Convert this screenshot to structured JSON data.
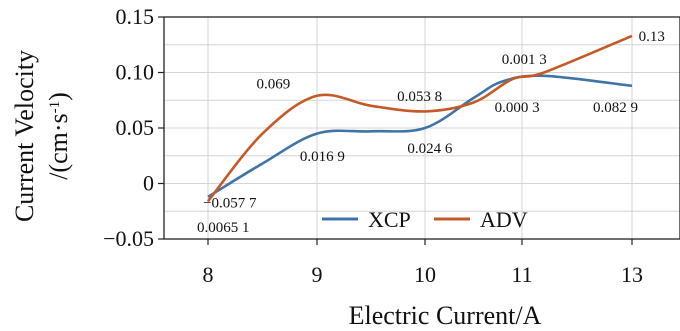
{
  "chart_data": {
    "type": "line",
    "xlabel": "Electric Current/A",
    "ylabel_line1": "Current Velocity",
    "ylabel_line2_prefix": "/(cm·s",
    "ylabel_line2_sup": "-1",
    "ylabel_line2_suffix": ")",
    "categories": [
      "8",
      "9",
      "10",
      "11",
      "13"
    ],
    "ylim": [
      -0.05,
      0.15
    ],
    "yticks": [
      {
        "value": 0.15,
        "label": "0.15"
      },
      {
        "value": 0.1,
        "label": "0.10"
      },
      {
        "value": 0.05,
        "label": "0.05"
      },
      {
        "value": 0,
        "label": "0"
      },
      {
        "value": -0.05,
        "label": "−0.05"
      }
    ],
    "grid": true,
    "legend_position": "bottom-center",
    "series": [
      {
        "name": "XCP",
        "color": "#3e74a8",
        "points": [
          {
            "x": 0,
            "y": -0.012
          },
          {
            "x": 0.5,
            "y": 0.018
          },
          {
            "x": 1.0,
            "y": 0.045
          },
          {
            "x": 1.5,
            "y": 0.047
          },
          {
            "x": 2.0,
            "y": 0.05
          },
          {
            "x": 2.5,
            "y": 0.077
          },
          {
            "x": 2.8,
            "y": 0.092
          },
          {
            "x": 3.2,
            "y": 0.097
          },
          {
            "x": 4.0,
            "y": 0.088
          }
        ]
      },
      {
        "name": "ADV",
        "color": "#c55a28",
        "points": [
          {
            "x": 0,
            "y": -0.016
          },
          {
            "x": 0.5,
            "y": 0.045
          },
          {
            "x": 1.0,
            "y": 0.079
          },
          {
            "x": 1.5,
            "y": 0.07
          },
          {
            "x": 2.0,
            "y": 0.065
          },
          {
            "x": 2.5,
            "y": 0.073
          },
          {
            "x": 2.9,
            "y": 0.094
          },
          {
            "x": 3.2,
            "y": 0.1
          },
          {
            "x": 4.0,
            "y": 0.133
          }
        ]
      }
    ],
    "annotations": [
      {
        "text": "−0.057 7",
        "x": 0.2,
        "y": -0.017
      },
      {
        "text": "0.0065 1",
        "x": 0.14,
        "y": -0.039
      },
      {
        "text": "0.069",
        "x": 0.6,
        "y": 0.09
      },
      {
        "text": "0.016 9",
        "x": 1.05,
        "y": 0.025
      },
      {
        "text": "0.053 8",
        "x": 1.95,
        "y": 0.079
      },
      {
        "text": "0.024 6",
        "x": 2.05,
        "y": 0.032
      },
      {
        "text": "0.001 3",
        "x": 3.02,
        "y": 0.112
      },
      {
        "text": "0.000 3",
        "x": 2.95,
        "y": 0.069
      },
      {
        "text": "0.082 9",
        "x": 3.85,
        "y": 0.069
      },
      {
        "text": "0.13",
        "x": 4.18,
        "y": 0.133
      }
    ]
  }
}
